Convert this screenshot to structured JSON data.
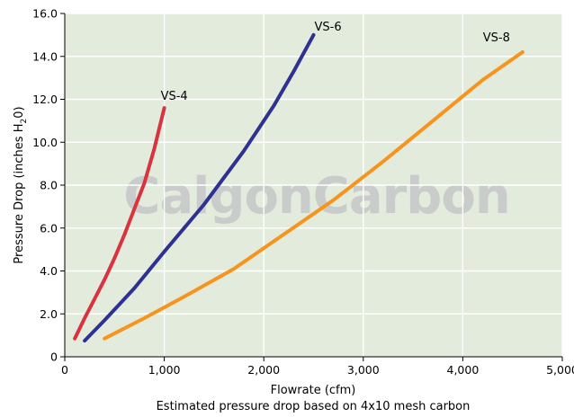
{
  "chart_data": {
    "type": "line",
    "title": "",
    "xlabel": "Flowrate (cfm)",
    "ylabel": "Pressure Drop (inches H",
    "ylabel_sub": "2",
    "ylabel_end": "0)",
    "caption": "Estimated pressure drop based on 4x10 mesh carbon",
    "watermark": "CalgonCarbon",
    "xlim": [
      0,
      5000
    ],
    "ylim": [
      0,
      16
    ],
    "x_ticks": [
      0,
      1000,
      2000,
      3000,
      4000,
      5000
    ],
    "x_tick_labels": [
      "0",
      "1,000",
      "2,000",
      "3,000",
      "4,000",
      "5,000"
    ],
    "y_ticks": [
      0,
      2,
      4,
      6,
      8,
      10,
      12,
      14,
      16
    ],
    "y_tick_labels": [
      "0",
      "2.0",
      "4.0",
      "6.0",
      "8.0",
      "10.0",
      "12.0",
      "14.0",
      "16.0"
    ],
    "grid": true,
    "background_color": "#e3ebdc",
    "series": [
      {
        "name": "VS-4",
        "color": "#d9333f",
        "points": [
          [
            100,
            0.85
          ],
          [
            200,
            1.8
          ],
          [
            300,
            2.7
          ],
          [
            400,
            3.6
          ],
          [
            500,
            4.6
          ],
          [
            600,
            5.7
          ],
          [
            700,
            6.9
          ],
          [
            800,
            8.1
          ],
          [
            900,
            9.7
          ],
          [
            1000,
            11.6
          ]
        ]
      },
      {
        "name": "VS-6",
        "color": "#2e3192",
        "points": [
          [
            200,
            0.75
          ],
          [
            400,
            1.7
          ],
          [
            700,
            3.2
          ],
          [
            1000,
            4.9
          ],
          [
            1400,
            7.1
          ],
          [
            1800,
            9.6
          ],
          [
            2100,
            11.7
          ],
          [
            2300,
            13.3
          ],
          [
            2500,
            15.0
          ]
        ]
      },
      {
        "name": "VS-8",
        "color": "#f7941d",
        "points": [
          [
            400,
            0.85
          ],
          [
            800,
            1.8
          ],
          [
            1200,
            2.8
          ],
          [
            1700,
            4.1
          ],
          [
            2200,
            5.7
          ],
          [
            2700,
            7.3
          ],
          [
            3200,
            9.1
          ],
          [
            3700,
            11.0
          ],
          [
            4200,
            12.9
          ],
          [
            4600,
            14.2
          ]
        ]
      }
    ]
  }
}
